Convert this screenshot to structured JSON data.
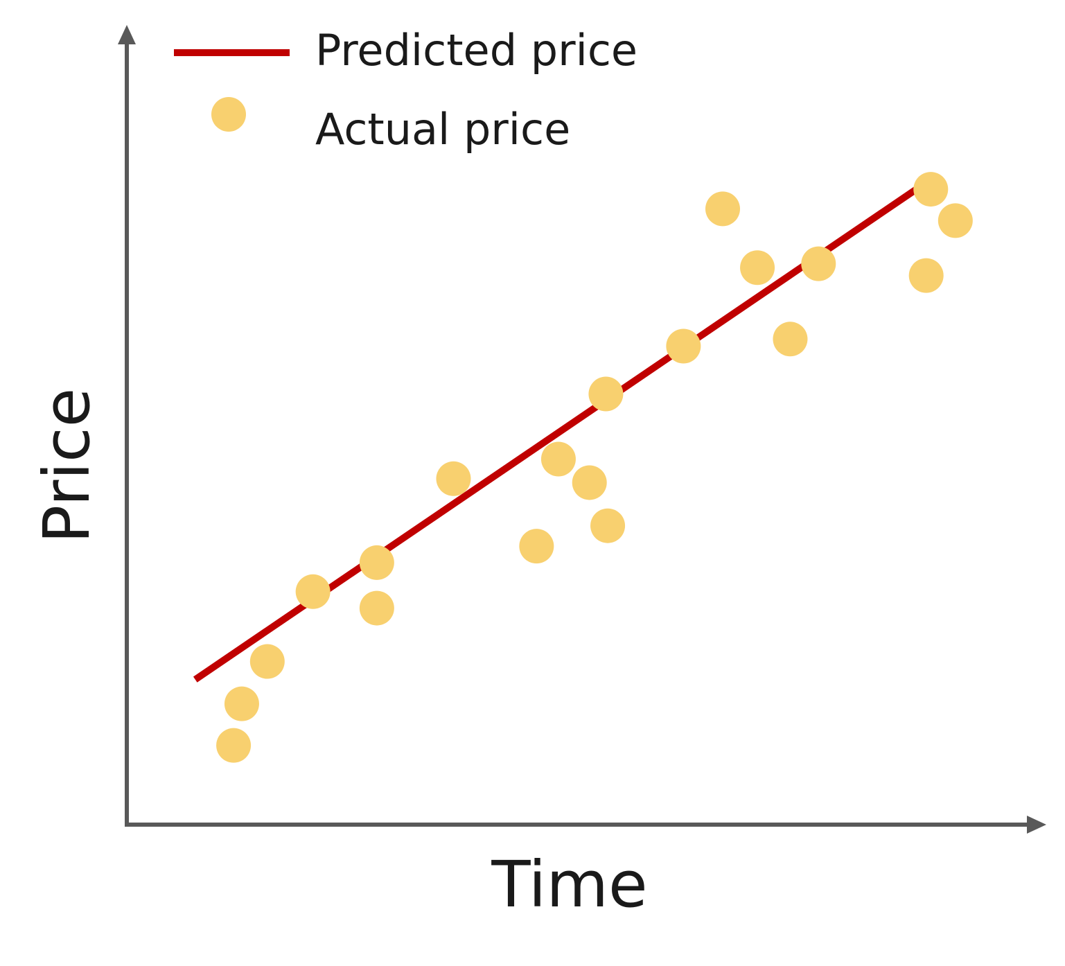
{
  "colors": {
    "axis": "#595959",
    "predicted_line": "#c00000",
    "actual_points": "#f8d06f",
    "text": "#1a1a1a"
  },
  "chart_data": {
    "type": "scatter",
    "title": "",
    "xlabel": "Time",
    "ylabel": "Price",
    "xlim": [
      0,
      100
    ],
    "ylim": [
      0,
      100
    ],
    "grid": false,
    "tick_labels": false,
    "legend": {
      "placement": "top-left",
      "entries": [
        {
          "label": "Predicted price",
          "marker": "line",
          "color": "#c00000"
        },
        {
          "label": "Actual price",
          "marker": "circle",
          "color": "#f8d06f"
        }
      ]
    },
    "series": [
      {
        "name": "Predicted price",
        "kind": "line",
        "color": "#c00000",
        "points": [
          {
            "x": 7.5,
            "y": 18.5
          },
          {
            "x": 86.9,
            "y": 81.3
          }
        ]
      },
      {
        "name": "Actual price",
        "kind": "scatter",
        "color": "#f8d06f",
        "points": [
          {
            "x": 11.7,
            "y": 10.1
          },
          {
            "x": 12.6,
            "y": 15.4
          },
          {
            "x": 15.4,
            "y": 20.8
          },
          {
            "x": 20.4,
            "y": 29.7
          },
          {
            "x": 27.4,
            "y": 27.6
          },
          {
            "x": 27.4,
            "y": 33.4
          },
          {
            "x": 35.8,
            "y": 44.1
          },
          {
            "x": 44.9,
            "y": 35.5
          },
          {
            "x": 47.3,
            "y": 46.6
          },
          {
            "x": 50.7,
            "y": 43.6
          },
          {
            "x": 52.7,
            "y": 38.1
          },
          {
            "x": 52.5,
            "y": 54.9
          },
          {
            "x": 61.0,
            "y": 61.0
          },
          {
            "x": 65.3,
            "y": 78.5
          },
          {
            "x": 69.1,
            "y": 71.0
          },
          {
            "x": 72.7,
            "y": 61.9
          },
          {
            "x": 75.8,
            "y": 71.5
          },
          {
            "x": 87.6,
            "y": 70.0
          },
          {
            "x": 88.1,
            "y": 81.0
          },
          {
            "x": 90.8,
            "y": 77.0
          }
        ]
      }
    ]
  }
}
